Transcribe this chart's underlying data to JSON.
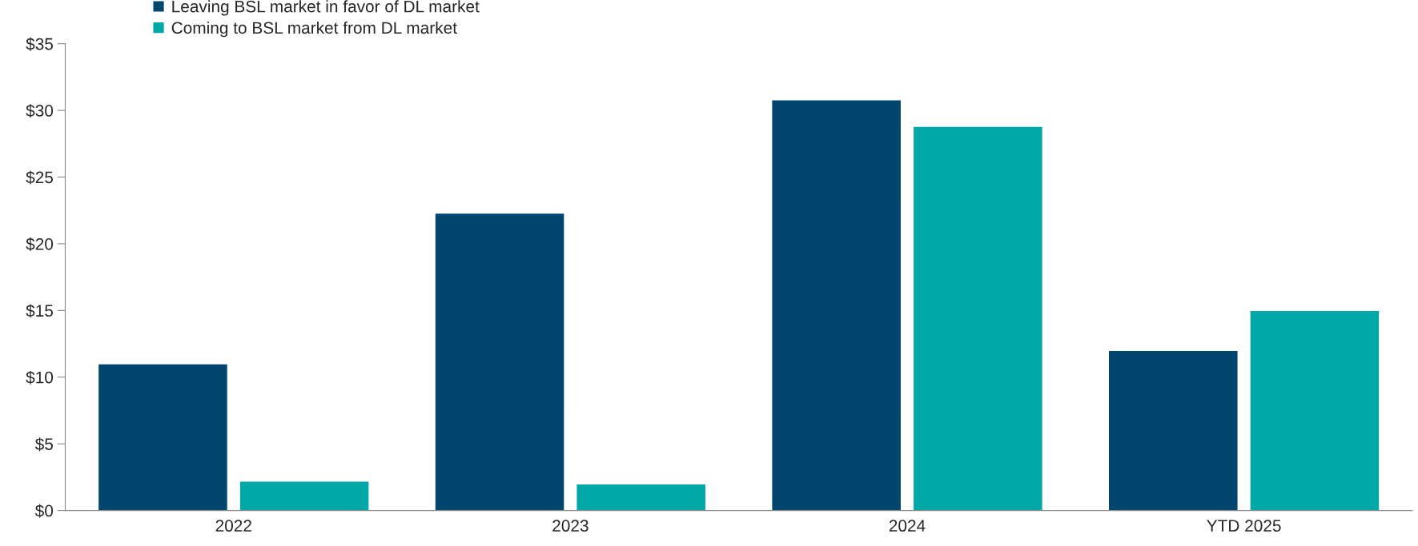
{
  "chart_data": {
    "type": "bar",
    "categories": [
      "2022",
      "2023",
      "2024",
      "YTD 2025"
    ],
    "series": [
      {
        "name": "Leaving BSL market in favor of DL market",
        "color": "#02466e",
        "values": [
          11,
          22.3,
          30.8,
          12
        ]
      },
      {
        "name": "Coming to BSL market from DL market",
        "color": "#00a8a8",
        "values": [
          2.2,
          2.0,
          28.8,
          15
        ]
      }
    ],
    "ylim": [
      0,
      35
    ],
    "yticks": [
      {
        "value": 0,
        "label": "$0"
      },
      {
        "value": 5,
        "label": "$5"
      },
      {
        "value": 10,
        "label": "$10"
      },
      {
        "value": 15,
        "label": "$15"
      },
      {
        "value": 20,
        "label": "$20"
      },
      {
        "value": 25,
        "label": "$25"
      },
      {
        "value": 30,
        "label": "$30"
      },
      {
        "value": 35,
        "label": "$35"
      }
    ],
    "grid": false,
    "legend": "top left"
  }
}
